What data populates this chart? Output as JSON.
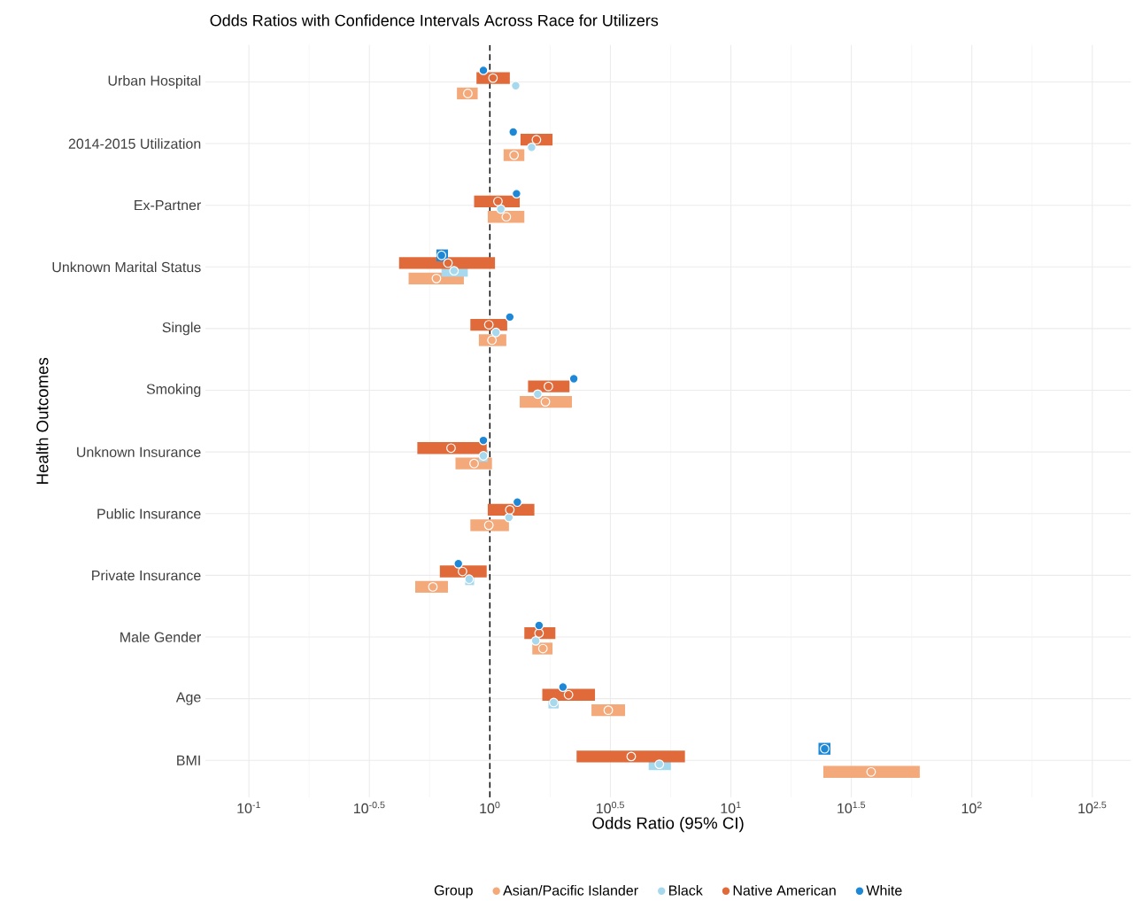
{
  "chart_data": {
    "type": "scatter",
    "orientation": "horizontal",
    "title": "Odds Ratios with Confidence Intervals Across Race for Utilizers",
    "xlabel": "Odds Ratio (95% CI)",
    "ylabel": "Health Outcomes",
    "legend_title": "Group",
    "legend": "bottom",
    "grid": true,
    "log": "x",
    "marker": "circle",
    "categories": [
      "Urban Hospital",
      "2014-2015 Utilization",
      "Ex-Partner",
      "Unknown Marital Status",
      "Single",
      "Smoking",
      "Unknown Insurance",
      "Public Insurance",
      "Private Insurance",
      "Male Gender",
      "Age",
      "BMI"
    ],
    "xlim": [
      0.066,
      457
    ],
    "xticks": [
      {
        "value": 0.1,
        "label": "10$^{-1}$"
      },
      {
        "value": 0.3162,
        "label": "10$^{-0.5}$"
      },
      {
        "value": 1,
        "label": "10$^{0}$"
      },
      {
        "value": 3.162,
        "label": "10$^{0.5}$"
      },
      {
        "value": 10,
        "label": "10$^{1}$"
      },
      {
        "value": 31.62,
        "label": "10$^{1.5}$"
      },
      {
        "value": 100,
        "label": "10$^{2}$"
      },
      {
        "value": 316.2,
        "label": "10$^{2.5}$"
      }
    ],
    "ref_lines": [
      {
        "axis": "x",
        "value": 1,
        "color": "#000000",
        "line_style": "dashed"
      }
    ],
    "series": [
      {
        "name": "Asian/Pacific Islander",
        "color": "#f4a97a",
        "values": [
          0.81,
          1.26,
          1.17,
          0.6,
          1.02,
          1.7,
          0.86,
          0.99,
          0.58,
          1.66,
          3.1,
          38.2
        ],
        "errors": [
          [
            0.73,
            0.89
          ],
          [
            1.14,
            1.39
          ],
          [
            0.98,
            1.39
          ],
          [
            0.46,
            0.78
          ],
          [
            0.9,
            1.17
          ],
          [
            1.33,
            2.19
          ],
          [
            0.72,
            1.02
          ],
          [
            0.83,
            1.2
          ],
          [
            0.49,
            0.67
          ],
          [
            1.5,
            1.82
          ],
          [
            2.64,
            3.64
          ],
          [
            24.2,
            60.8
          ]
        ]
      },
      {
        "name": "Black",
        "color": "#a6d8ee",
        "values": [
          1.28,
          1.49,
          1.11,
          0.71,
          1.06,
          1.58,
          0.94,
          1.2,
          0.82,
          1.55,
          1.84,
          5.05
        ],
        "errors": [
          null,
          null,
          null,
          [
            0.63,
            0.81
          ],
          null,
          null,
          [
            0.9,
            0.98
          ],
          null,
          [
            0.79,
            0.86
          ],
          null,
          [
            1.75,
            1.93
          ],
          [
            4.56,
            5.64
          ]
        ]
      },
      {
        "name": "Native American",
        "color": "#e06a3a",
        "values": [
          1.03,
          1.56,
          1.08,
          0.67,
          0.99,
          1.75,
          0.69,
          1.21,
          0.77,
          1.6,
          2.12,
          3.86
        ],
        "errors": [
          [
            0.88,
            1.21
          ],
          [
            1.34,
            1.82
          ],
          [
            0.86,
            1.33
          ],
          [
            0.42,
            1.05
          ],
          [
            0.83,
            1.18
          ],
          [
            1.44,
            2.14
          ],
          [
            0.5,
            0.97
          ],
          [
            0.98,
            1.53
          ],
          [
            0.62,
            0.97
          ],
          [
            1.39,
            1.87
          ],
          [
            1.65,
            2.73
          ],
          [
            2.29,
            6.45
          ]
        ]
      },
      {
        "name": "White",
        "color": "#1f88d6",
        "values": [
          0.94,
          1.25,
          1.29,
          0.63,
          1.21,
          2.23,
          0.94,
          1.3,
          0.74,
          1.6,
          2.01,
          24.5
        ],
        "errors": [
          null,
          null,
          null,
          [
            0.6,
            0.67
          ],
          null,
          null,
          null,
          null,
          null,
          null,
          null,
          [
            23.1,
            25.9
          ]
        ]
      }
    ]
  }
}
